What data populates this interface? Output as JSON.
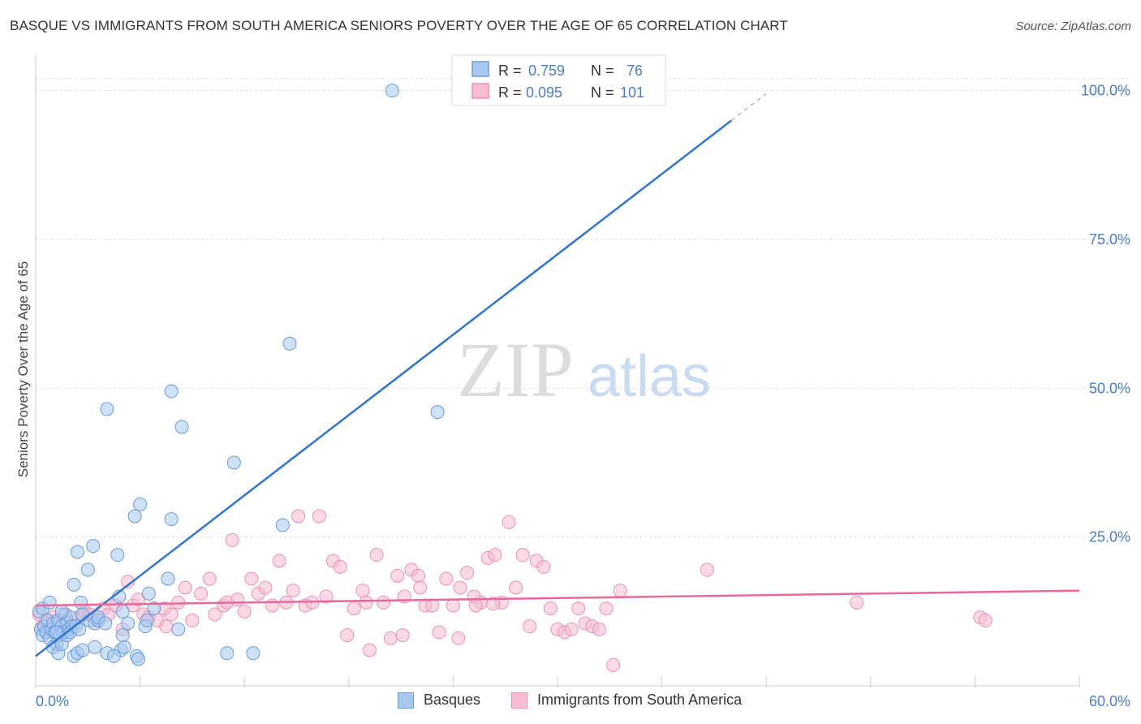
{
  "title": "BASQUE VS IMMIGRANTS FROM SOUTH AMERICA SENIORS POVERTY OVER THE AGE OF 65 CORRELATION CHART",
  "source": "Source: ZipAtlas.com",
  "watermark": {
    "zip": "ZIP",
    "atlas": "atlas"
  },
  "colors": {
    "blue_fill": "#a8c8f0",
    "blue_stroke": "#6a9bd8",
    "blue_line": "#2f74d0",
    "pink_fill": "#f7bcd0",
    "pink_stroke": "#ee8fb0",
    "pink_line": "#e8689a",
    "axis_label": "#4a7cc9",
    "grid": "#dddddd"
  },
  "legend_top": {
    "rows": [
      {
        "r_label": "R =",
        "r_value": "0.759",
        "n_label": "N =",
        "n_value": "76"
      },
      {
        "r_label": "R =",
        "r_value": "0.095",
        "n_label": "N =",
        "n_value": "101"
      }
    ]
  },
  "legend_bottom": {
    "series1": "Basques",
    "series2": "Immigrants from South America"
  },
  "chart_data": {
    "type": "scatter",
    "xlabel": "",
    "ylabel": "Seniors Poverty Over the Age of 65",
    "xlim": [
      0,
      60
    ],
    "ylim": [
      0,
      105
    ],
    "x_tick_labels": [
      "0.0%",
      "60.0%"
    ],
    "y_ticks": [
      25,
      50,
      75,
      100
    ],
    "y_tick_labels": [
      "25.0%",
      "50.0%",
      "75.0%",
      "100.0%"
    ],
    "legend_position": "top-center",
    "series": [
      {
        "name": "Basques",
        "r": 0.759,
        "n": 76,
        "trend": {
          "x0": 0,
          "y0": 5,
          "x1": 40,
          "y1": 95,
          "dash_to_x": 42
        },
        "points": [
          [
            0.2,
            12.5
          ],
          [
            0.3,
            9.5
          ],
          [
            0.4,
            8.5
          ],
          [
            0.5,
            10
          ],
          [
            0.6,
            9
          ],
          [
            0.7,
            11
          ],
          [
            0.8,
            8
          ],
          [
            0.9,
            9.5
          ],
          [
            1.0,
            10.5
          ],
          [
            1.1,
            9
          ],
          [
            1.2,
            7
          ],
          [
            1.3,
            11
          ],
          [
            1.4,
            8.5
          ],
          [
            1.5,
            10
          ],
          [
            1.6,
            9
          ],
          [
            1.7,
            12
          ],
          [
            1.8,
            10.5
          ],
          [
            1.9,
            9.5
          ],
          [
            2.0,
            11.5
          ],
          [
            2.1,
            10
          ],
          [
            1.0,
            6.5
          ],
          [
            1.3,
            5.5
          ],
          [
            2.2,
            5
          ],
          [
            2.4,
            5.5
          ],
          [
            2.7,
            6
          ],
          [
            1.5,
            7
          ],
          [
            1.8,
            8.5
          ],
          [
            2.0,
            9
          ],
          [
            2.3,
            10
          ],
          [
            2.5,
            9.5
          ],
          [
            2.2,
            17
          ],
          [
            2.4,
            22.5
          ],
          [
            3.3,
            23.5
          ],
          [
            3.0,
            19.5
          ],
          [
            4.7,
            22
          ],
          [
            4.8,
            15
          ],
          [
            2.6,
            14
          ],
          [
            3.1,
            11
          ],
          [
            3.4,
            10.5
          ],
          [
            3.6,
            11
          ],
          [
            5.0,
            12.5
          ],
          [
            5.3,
            10.5
          ],
          [
            5.0,
            8.5
          ],
          [
            6.3,
            10
          ],
          [
            6.5,
            15.5
          ],
          [
            5.7,
            28.5
          ],
          [
            6.0,
            30.5
          ],
          [
            7.8,
            28
          ],
          [
            4.1,
            5.5
          ],
          [
            4.9,
            6
          ],
          [
            5.1,
            6.5
          ],
          [
            5.8,
            5
          ],
          [
            5.9,
            4.5
          ],
          [
            4.5,
            5
          ],
          [
            7.6,
            18
          ],
          [
            8.2,
            9.5
          ],
          [
            4.1,
            46.5
          ],
          [
            7.8,
            49.5
          ],
          [
            8.4,
            43.5
          ],
          [
            11.4,
            37.5
          ],
          [
            14.2,
            27
          ],
          [
            14.6,
            57.5
          ],
          [
            23.1,
            46
          ],
          [
            11.0,
            5.5
          ],
          [
            12.5,
            5.5
          ],
          [
            3.4,
            6.5
          ],
          [
            0.4,
            13
          ],
          [
            0.8,
            14
          ],
          [
            1.5,
            12.5
          ],
          [
            2.7,
            12
          ],
          [
            3.6,
            11.5
          ],
          [
            4.0,
            10.5
          ],
          [
            6.4,
            11
          ],
          [
            6.8,
            13
          ],
          [
            1.2,
            9
          ],
          [
            20.5,
            100
          ]
        ]
      },
      {
        "name": "Immigrants from South America",
        "r": 0.095,
        "n": 101,
        "trend": {
          "x0": 0,
          "y0": 13.5,
          "x1": 60,
          "y1": 16
        },
        "points": [
          [
            0.2,
            12
          ],
          [
            0.4,
            10
          ],
          [
            0.6,
            11
          ],
          [
            0.8,
            9.5
          ],
          [
            1.0,
            11.5
          ],
          [
            1.2,
            10.5
          ],
          [
            1.5,
            12
          ],
          [
            1.8,
            11
          ],
          [
            2.1,
            10
          ],
          [
            2.5,
            11.5
          ],
          [
            2.8,
            12.5
          ],
          [
            3.1,
            12
          ],
          [
            3.5,
            11
          ],
          [
            3.9,
            13
          ],
          [
            4.2,
            12
          ],
          [
            4.6,
            13.5
          ],
          [
            5.0,
            9.5
          ],
          [
            5.3,
            17.5
          ],
          [
            5.6,
            13.5
          ],
          [
            5.9,
            14.5
          ],
          [
            6.2,
            12
          ],
          [
            6.5,
            11.5
          ],
          [
            7.0,
            11
          ],
          [
            7.4,
            13
          ],
          [
            7.8,
            12
          ],
          [
            8.2,
            14
          ],
          [
            8.6,
            16.5
          ],
          [
            9.0,
            11
          ],
          [
            9.5,
            15.5
          ],
          [
            10.0,
            18
          ],
          [
            10.3,
            12
          ],
          [
            10.8,
            13.5
          ],
          [
            11.0,
            14
          ],
          [
            11.3,
            24.5
          ],
          [
            11.6,
            14.5
          ],
          [
            12.0,
            12.5
          ],
          [
            12.4,
            18
          ],
          [
            12.8,
            15.5
          ],
          [
            13.2,
            16.5
          ],
          [
            13.6,
            13.5
          ],
          [
            14.0,
            21
          ],
          [
            14.4,
            14
          ],
          [
            14.8,
            16
          ],
          [
            15.1,
            28.5
          ],
          [
            15.5,
            13.5
          ],
          [
            15.9,
            14
          ],
          [
            16.3,
            28.5
          ],
          [
            16.7,
            15
          ],
          [
            17.1,
            21
          ],
          [
            17.5,
            20
          ],
          [
            17.9,
            8.5
          ],
          [
            18.3,
            13
          ],
          [
            18.8,
            16
          ],
          [
            19.2,
            6
          ],
          [
            19.6,
            22
          ],
          [
            20.0,
            14
          ],
          [
            20.4,
            8
          ],
          [
            20.8,
            18.5
          ],
          [
            21.2,
            15
          ],
          [
            21.6,
            19.5
          ],
          [
            22.0,
            18.5
          ],
          [
            22.4,
            13.5
          ],
          [
            22.8,
            13.5
          ],
          [
            23.2,
            9
          ],
          [
            23.6,
            18
          ],
          [
            24.0,
            13.5
          ],
          [
            24.4,
            16.5
          ],
          [
            24.8,
            19
          ],
          [
            25.2,
            15
          ],
          [
            25.6,
            14
          ],
          [
            26.0,
            21.5
          ],
          [
            26.4,
            22
          ],
          [
            26.8,
            14
          ],
          [
            27.2,
            27.5
          ],
          [
            27.6,
            16.5
          ],
          [
            28.0,
            22
          ],
          [
            28.4,
            10
          ],
          [
            28.8,
            21
          ],
          [
            29.2,
            20
          ],
          [
            29.6,
            13
          ],
          [
            30.0,
            9.5
          ],
          [
            30.4,
            9
          ],
          [
            30.8,
            9.5
          ],
          [
            31.2,
            13
          ],
          [
            31.6,
            10.5
          ],
          [
            32.0,
            10
          ],
          [
            32.4,
            9.5
          ],
          [
            32.8,
            13
          ],
          [
            33.2,
            3.5
          ],
          [
            33.6,
            16
          ],
          [
            25.3,
            13.5
          ],
          [
            26.3,
            13.8
          ],
          [
            24.3,
            8
          ],
          [
            22.1,
            16.5
          ],
          [
            21.1,
            8.5
          ],
          [
            38.6,
            19.5
          ],
          [
            47.2,
            14
          ],
          [
            54.3,
            11.5
          ],
          [
            54.6,
            11
          ],
          [
            19.0,
            14
          ],
          [
            7.5,
            10
          ]
        ]
      }
    ]
  }
}
